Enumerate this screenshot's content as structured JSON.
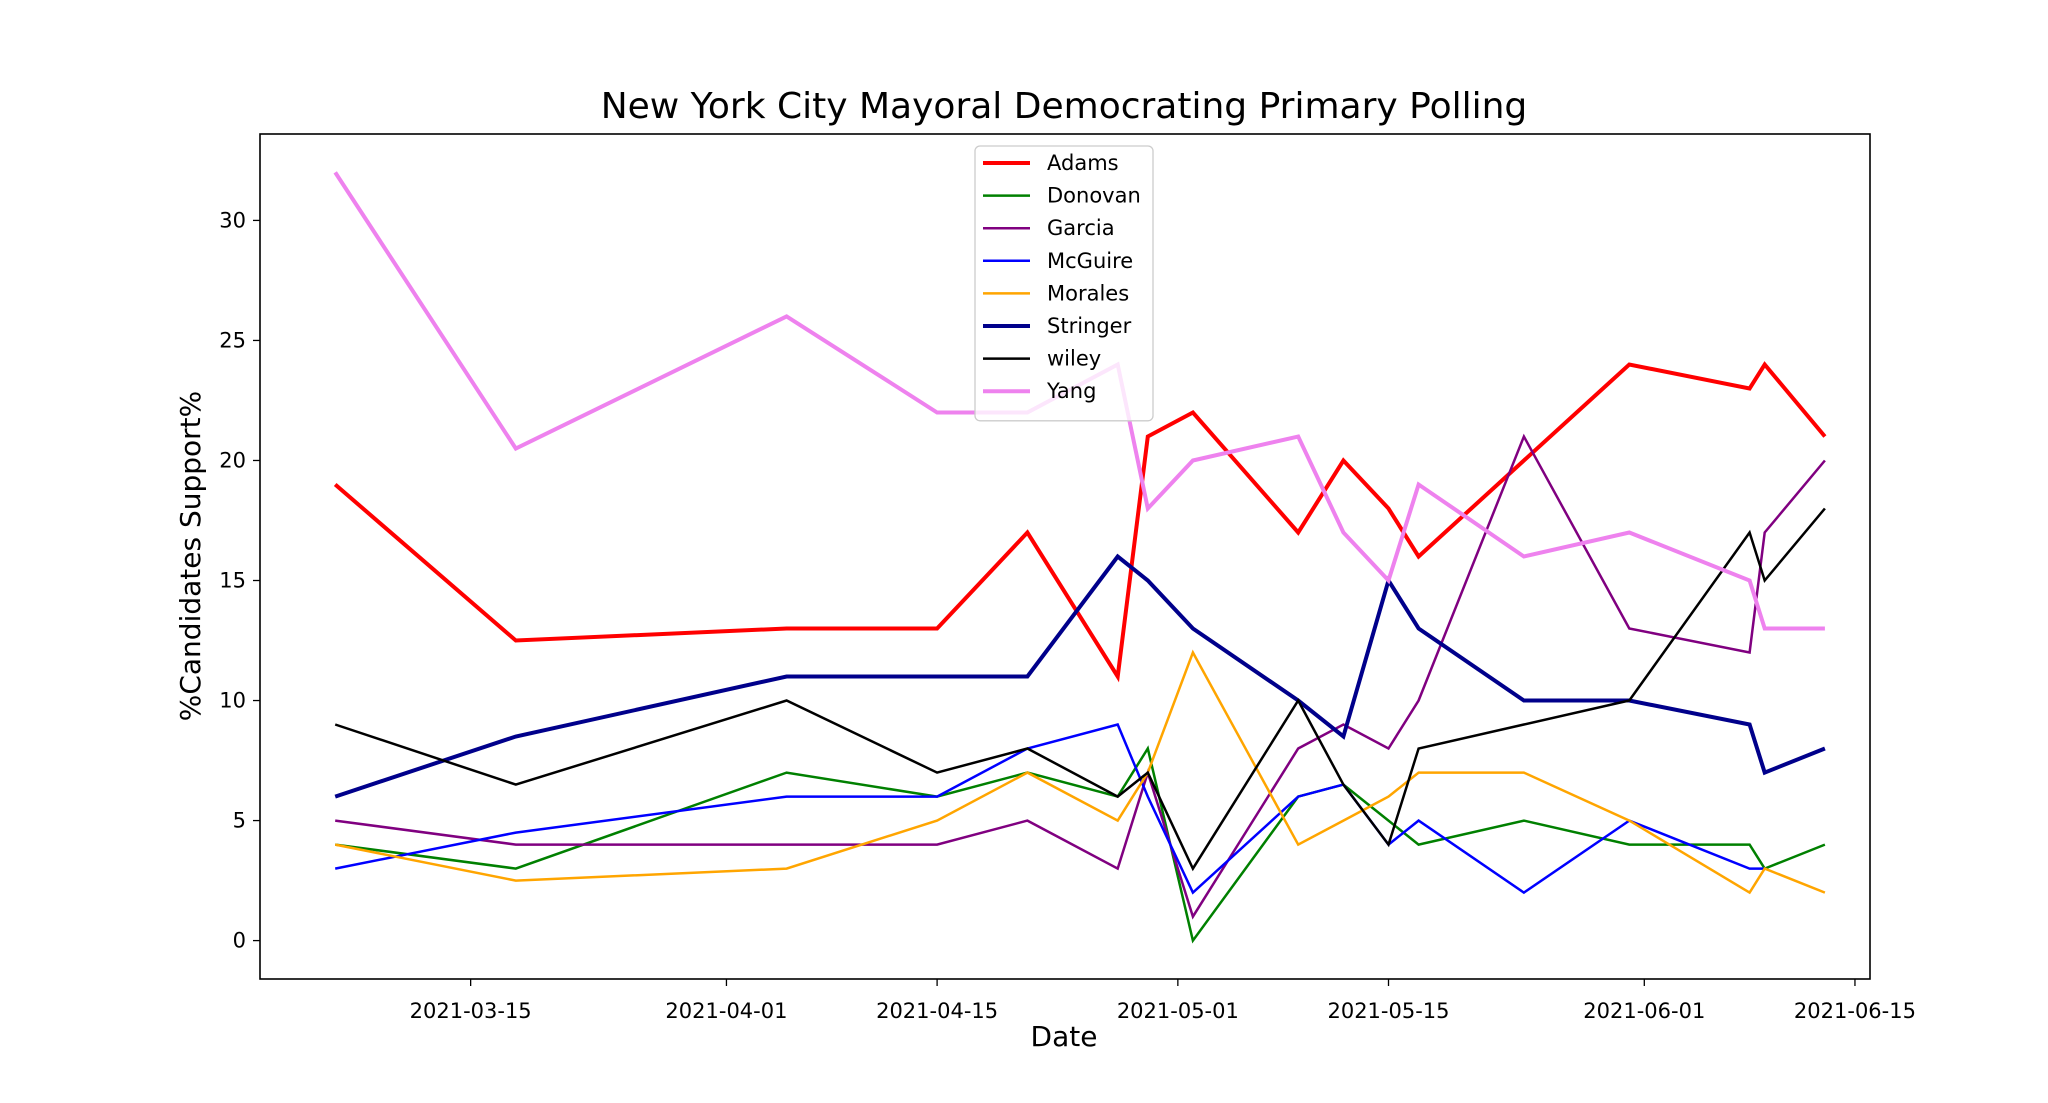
{
  "chart_data": {
    "type": "line",
    "title": "New York City Mayoral Democrating Primary Polling",
    "xlabel": "Date",
    "ylabel": "%Candidates Support%",
    "x": [
      "2021-03-06",
      "2021-03-18",
      "2021-04-05",
      "2021-04-15",
      "2021-04-21",
      "2021-04-27",
      "2021-04-29",
      "2021-05-02",
      "2021-05-09",
      "2021-05-12",
      "2021-05-15",
      "2021-05-17",
      "2021-05-24",
      "2021-05-31",
      "2021-06-08",
      "2021-06-09",
      "2021-06-13"
    ],
    "xticks": [
      "2021-03-15",
      "2021-04-01",
      "2021-04-15",
      "2021-05-01",
      "2021-05-15",
      "2021-06-01",
      "2021-06-15"
    ],
    "yticks": [
      0,
      5,
      10,
      15,
      20,
      25,
      30
    ],
    "ylim": [
      -1.6,
      33.6
    ],
    "xlim": [
      "2021-03-01",
      "2021-06-16"
    ],
    "grid": false,
    "legend_position": "upper center",
    "series": [
      {
        "name": "Adams",
        "color": "#ff0000",
        "width": 4,
        "values": [
          19,
          12.5,
          13,
          13,
          17,
          11,
          21,
          22,
          17,
          20,
          18,
          16,
          20,
          24,
          23,
          24,
          21
        ]
      },
      {
        "name": "Donovan",
        "color": "#008000",
        "width": 2.5,
        "values": [
          4,
          3,
          7,
          6,
          7,
          6,
          8,
          0,
          6,
          6.5,
          5,
          4,
          5,
          4,
          4,
          3,
          4
        ]
      },
      {
        "name": "Garcia",
        "color": "#800080",
        "width": 2.5,
        "values": [
          5,
          4,
          4,
          4,
          5,
          3,
          7,
          1,
          8,
          9,
          8,
          10,
          21,
          13,
          12,
          17,
          20
        ]
      },
      {
        "name": "McGuire",
        "color": "#0000ff",
        "width": 2.5,
        "values": [
          3,
          4.5,
          6,
          6,
          8,
          9,
          6,
          2,
          6,
          6.5,
          4,
          5,
          2,
          5,
          3,
          3,
          null
        ]
      },
      {
        "name": "Morales",
        "color": "#ffa500",
        "width": 2.5,
        "values": [
          4,
          2.5,
          3,
          5,
          7,
          5,
          7,
          12,
          4,
          5,
          6,
          7,
          7,
          5,
          2,
          3,
          2
        ]
      },
      {
        "name": "Stringer",
        "color": "#00008b",
        "width": 4,
        "values": [
          6,
          8.5,
          11,
          11,
          11,
          16,
          15,
          13,
          10,
          8.5,
          15,
          13,
          10,
          10,
          9,
          7,
          8
        ]
      },
      {
        "name": "wiley",
        "color": "#000000",
        "width": 2.5,
        "values": [
          9,
          6.5,
          10,
          7,
          8,
          6,
          7,
          3,
          10,
          6.5,
          4,
          8,
          9,
          10,
          17,
          15,
          18
        ]
      },
      {
        "name": "Yang",
        "color": "#ee82ee",
        "width": 4,
        "values": [
          32,
          20.5,
          26,
          22,
          22,
          24,
          18,
          20,
          21,
          17,
          15,
          19,
          16,
          17,
          15,
          13,
          13
        ]
      }
    ]
  }
}
